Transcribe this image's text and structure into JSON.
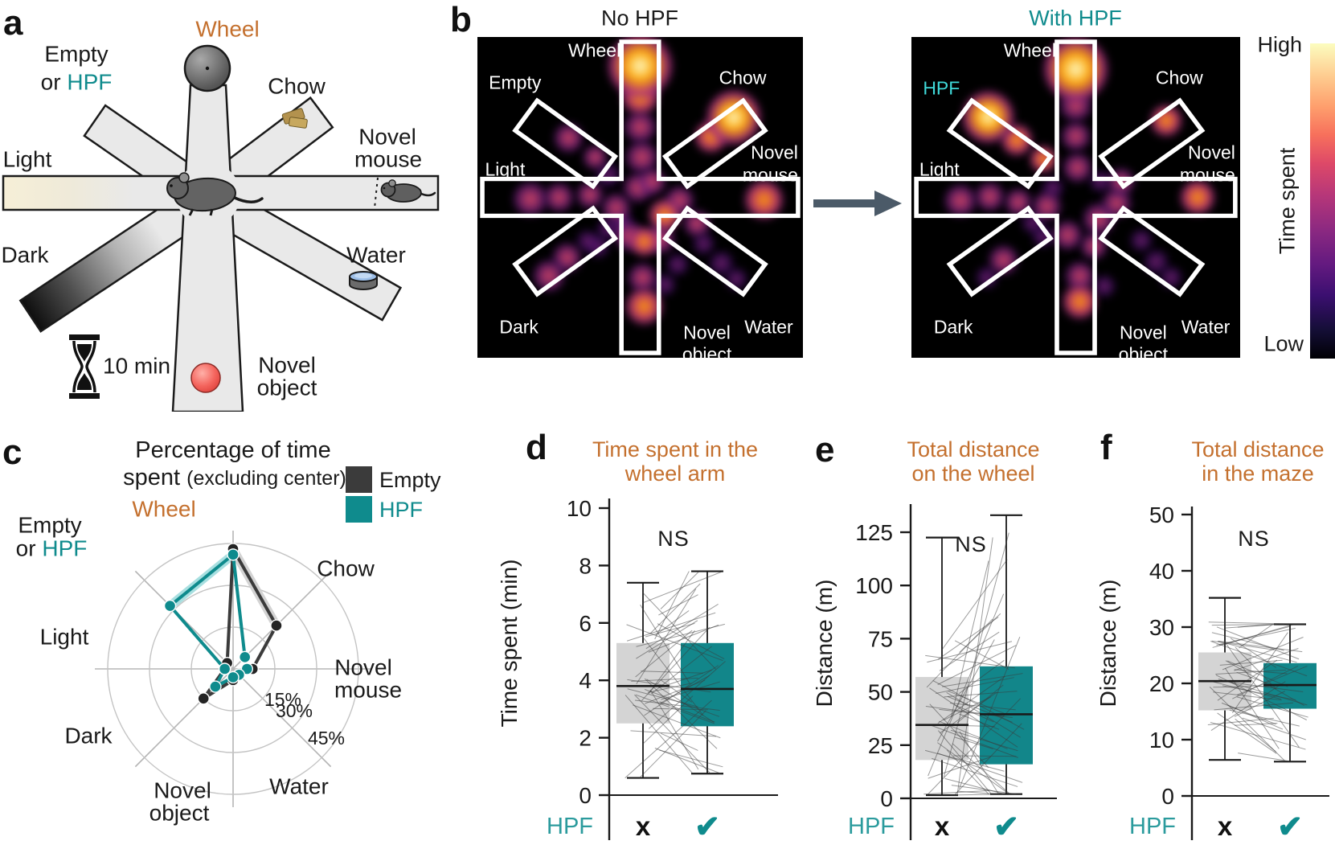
{
  "colors": {
    "accent_orange": "#c4702e",
    "accent_teal": "#0f8b8d",
    "teal_fill": "#12868a",
    "gray_fill": "#d4d4d4",
    "heat_cyan": "#3fd9d9",
    "legend_dark": "#3b3b3b",
    "arrow": "#4b5a68"
  },
  "figure": {
    "panel_a": {
      "label": "a",
      "arm_labels": {
        "wheel": "Wheel",
        "empty_line1": "Empty",
        "empty_or": "or ",
        "empty_hpf": "HPF",
        "chow": "Chow",
        "light": "Light",
        "novel_mouse_1": "Novel",
        "novel_mouse_2": "mouse",
        "dark": "Dark",
        "water": "Water",
        "novel_object_1": "Novel",
        "novel_object_2": "object"
      },
      "timer_label": "10 min"
    },
    "panel_b": {
      "label": "b",
      "maps": [
        {
          "id": "no-hpf",
          "title": "No HPF",
          "title_color": "#1a1a1a",
          "labels": {
            "wheel": "Wheel",
            "upper_left": "Empty",
            "upper_left_color": "#ffffff",
            "chow": "Chow",
            "light": "Light",
            "novel_mouse_1": "Novel",
            "novel_mouse_2": "mouse",
            "dark": "Dark",
            "water": "Water",
            "novel_object_1": "Novel",
            "novel_object_2": "object"
          }
        },
        {
          "id": "with-hpf",
          "title": "With HPF",
          "title_color": "#0f8b8d",
          "labels": {
            "wheel": "Wheel",
            "upper_left": "HPF",
            "upper_left_color": "#3fd9d9",
            "chow": "Chow",
            "light": "Light",
            "novel_mouse_1": "Novel",
            "novel_mouse_2": "mouse",
            "dark": "Dark",
            "water": "Water",
            "novel_object_1": "Novel",
            "novel_object_2": "object"
          }
        }
      ],
      "colorbar": {
        "high": "High",
        "low": "Low",
        "label": "Time spent"
      }
    },
    "panel_c": {
      "label": "c",
      "title_line1": "Percentage of time",
      "title_line2_main": "spent ",
      "title_line2_paren": "(excluding center)",
      "legend": [
        {
          "label": "Empty",
          "color": "#3b3b3b"
        },
        {
          "label": "HPF",
          "color": "#0f8b8d"
        }
      ],
      "axis_labels": {
        "wheel": "Wheel",
        "chow": "Chow",
        "novel_mouse_1": "Novel",
        "novel_mouse_2": "mouse",
        "water": "Water",
        "novel_object_1": "Novel",
        "novel_object_2": "object",
        "dark": "Dark",
        "light": "Light",
        "empty_line1": "Empty",
        "empty_or": "or ",
        "empty_hpf": "HPF"
      }
    },
    "panel_d": {
      "label": "d"
    },
    "panel_e": {
      "label": "e"
    },
    "panel_f": {
      "label": "f"
    }
  },
  "chart_data": [
    {
      "id": "radar-time-spent",
      "type": "radar",
      "title": "Percentage of time spent (excluding center)",
      "rings_pct": [
        15,
        30,
        45
      ],
      "categories": [
        "Wheel",
        "Chow",
        "Novel mouse",
        "Water",
        "Novel object",
        "Dark",
        "Light",
        "Empty or HPF"
      ],
      "series": [
        {
          "name": "Empty",
          "color": "#3b3b3b",
          "values": [
            43,
            22,
            7,
            3,
            4,
            15,
            3,
            3
          ]
        },
        {
          "name": "HPF",
          "color": "#0f8b8d",
          "values": [
            41,
            6,
            5,
            3,
            3,
            9,
            3,
            32
          ]
        }
      ],
      "legend_position": "top-right",
      "grid": true
    },
    {
      "id": "box-wheel-arm-time",
      "type": "box",
      "panel": "d",
      "title_lines": [
        "Time spent in the",
        "wheel arm"
      ],
      "ylabel": "Time spent (min)",
      "ylim": [
        0,
        10
      ],
      "yticks": [
        0,
        2,
        4,
        6,
        8,
        10
      ],
      "annotation": "NS",
      "row_label": "HPF",
      "group_marks": [
        "x",
        "✔"
      ],
      "groups": [
        {
          "name": "No HPF",
          "color": "#d4d4d4",
          "q1": 2.5,
          "median": 3.8,
          "q3": 5.3,
          "whisker_low": 0.6,
          "whisker_high": 7.4
        },
        {
          "name": "HPF",
          "color": "#12868a",
          "q1": 2.4,
          "median": 3.7,
          "q3": 5.3,
          "whisker_low": 0.75,
          "whisker_high": 7.8
        }
      ]
    },
    {
      "id": "box-wheel-distance",
      "type": "box",
      "panel": "e",
      "title_lines": [
        "Total distance",
        "on the wheel"
      ],
      "ylabel": "Distance (m)",
      "ylim": [
        0,
        135
      ],
      "yticks": [
        0,
        25,
        50,
        75,
        100,
        125
      ],
      "annotation": "NS",
      "row_label": "HPF",
      "group_marks": [
        "x",
        "✔"
      ],
      "groups": [
        {
          "name": "No HPF",
          "color": "#d4d4d4",
          "q1": 18,
          "median": 34.5,
          "q3": 57,
          "whisker_low": 1.5,
          "whisker_high": 122.5
        },
        {
          "name": "HPF",
          "color": "#12868a",
          "q1": 16,
          "median": 39.5,
          "q3": 62,
          "whisker_low": 2,
          "whisker_high": 133
        }
      ]
    },
    {
      "id": "box-maze-distance",
      "type": "box",
      "panel": "f",
      "title_lines": [
        "Total distance",
        "in the maze"
      ],
      "ylabel": "Distance (m)",
      "ylim": [
        0,
        50
      ],
      "yticks": [
        0,
        10,
        20,
        30,
        40,
        50
      ],
      "annotation": "NS",
      "row_label": "HPF",
      "group_marks": [
        "x",
        "✔"
      ],
      "groups": [
        {
          "name": "No HPF",
          "color": "#d4d4d4",
          "q1": 15.2,
          "median": 20.4,
          "q3": 25.5,
          "whisker_low": 6.4,
          "whisker_high": 35.2
        },
        {
          "name": "HPF",
          "color": "#12868a",
          "q1": 15.5,
          "median": 19.7,
          "q3": 23.6,
          "whisker_low": 6.1,
          "whisker_high": 30.5
        }
      ]
    },
    {
      "id": "heatmap-no-hpf",
      "type": "heatmap",
      "title": "No HPF",
      "scale": {
        "high": "High",
        "low": "Low",
        "label": "Time spent"
      },
      "hotspots_high": [
        "Wheel",
        "Chow"
      ],
      "blobs": {
        "peak": [
          [
            200,
            36,
            26
          ],
          [
            315,
            100,
            22
          ]
        ],
        "hot": [
          [
            200,
            74,
            15
          ],
          [
            287,
            124,
            13
          ],
          [
            352,
            203,
            16
          ],
          [
            205,
            336,
            15
          ],
          [
            230,
            222,
            13
          ],
          [
            205,
            255,
            12
          ]
        ],
        "warm": [
          [
            200,
            112,
            13
          ],
          [
            202,
            150,
            13
          ],
          [
            197,
            188,
            12
          ],
          [
            65,
            202,
            14
          ],
          [
            100,
            200,
            12
          ],
          [
            138,
            197,
            11
          ],
          [
            170,
            213,
            12
          ],
          [
            225,
            252,
            12
          ],
          [
            186,
            248,
            12
          ],
          [
            248,
            204,
            12
          ],
          [
            110,
            275,
            12
          ],
          [
            88,
            298,
            13
          ],
          [
            203,
            300,
            12
          ],
          [
            112,
            126,
            12
          ],
          [
            270,
            233,
            11
          ],
          [
            215,
            180,
            11
          ],
          [
            145,
            150,
            10
          ]
        ],
        "dim": [
          [
            160,
            172,
            10
          ],
          [
            300,
            282,
            10
          ],
          [
            318,
            302,
            9
          ],
          [
            278,
            258,
            9
          ],
          [
            246,
            284,
            9
          ],
          [
            230,
            309,
            9
          ],
          [
            160,
            240,
            9
          ],
          [
            148,
            262,
            9
          ],
          [
            178,
            232,
            9
          ],
          [
            135,
            255,
            9
          ]
        ]
      }
    },
    {
      "id": "heatmap-with-hpf",
      "type": "heatmap",
      "title": "With HPF",
      "scale": {
        "high": "High",
        "low": "Low",
        "label": "Time spent"
      },
      "hotspots_high": [
        "Wheel",
        "HPF"
      ],
      "blobs": {
        "peak": [
          [
            200,
            40,
            26
          ],
          [
            93,
            100,
            21
          ]
        ],
        "hot": [
          [
            128,
            128,
            13
          ],
          [
            310,
            104,
            13
          ],
          [
            348,
            200,
            14
          ],
          [
            205,
            330,
            14
          ],
          [
            160,
            152,
            11
          ]
        ],
        "warm": [
          [
            200,
            85,
            13
          ],
          [
            200,
            124,
            12
          ],
          [
            202,
            163,
            12
          ],
          [
            60,
            204,
            13
          ],
          [
            95,
            199,
            12
          ],
          [
            130,
            206,
            11
          ],
          [
            165,
            211,
            12
          ],
          [
            228,
            227,
            13
          ],
          [
            190,
            247,
            12
          ],
          [
            250,
            207,
            12
          ],
          [
            112,
            278,
            12
          ],
          [
            205,
            298,
            12
          ],
          [
            255,
            180,
            11
          ],
          [
            222,
            261,
            11
          ]
        ],
        "dim": [
          [
            298,
            280,
            10
          ],
          [
            316,
            300,
            9
          ],
          [
            160,
            249,
            9
          ],
          [
            235,
            311,
            9
          ],
          [
            280,
            254,
            9
          ],
          [
            92,
            300,
            9
          ],
          [
            172,
            188,
            9
          ],
          [
            148,
            232,
            9
          ],
          [
            230,
            180,
            9
          ]
        ]
      }
    }
  ]
}
